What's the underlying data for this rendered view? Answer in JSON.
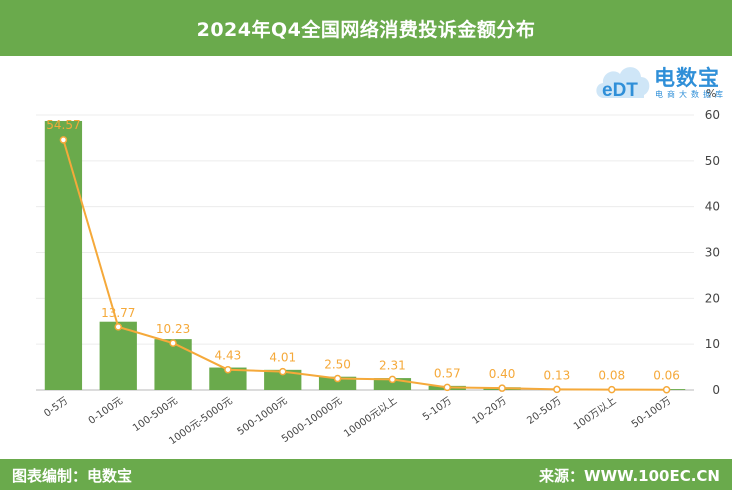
{
  "header": {
    "title": "2024年Q4全国网络消费投诉金额分布"
  },
  "logo": {
    "name": "电数宝",
    "subtitle": "电商大数据库",
    "cloud_text": "eDT"
  },
  "footer": {
    "left": "图表编制：电数宝",
    "right": "来源：WWW.100EC.CN"
  },
  "colors": {
    "bar": "#6aaa4c",
    "line": "#f5a93a",
    "header": "#6aaa4c",
    "logo": "#2f8fd8"
  },
  "chart_data": {
    "type": "bar",
    "categories": [
      "0-5万",
      "0-100元",
      "100-500元",
      "1000元-5000元",
      "500-1000元",
      "5000-10000元",
      "10000元以上",
      "5-10万",
      "10-20万",
      "20-50万",
      "100万以上",
      "50-100万"
    ],
    "series": [
      {
        "type": "bar",
        "values": [
          58.7,
          14.9,
          11.1,
          4.9,
          4.4,
          2.9,
          2.6,
          0.9,
          0.6,
          0.3,
          0.2,
          0.2
        ]
      },
      {
        "type": "line",
        "values": [
          54.57,
          13.77,
          10.23,
          4.43,
          4.01,
          2.5,
          2.31,
          0.57,
          0.4,
          0.13,
          0.08,
          0.06
        ],
        "labels": [
          "54.57",
          "13.77",
          "10.23",
          "4.43",
          "4.01",
          "2.50",
          "2.31",
          "0.57",
          "0.40",
          "0.13",
          "0.08",
          "0.06"
        ]
      }
    ],
    "yaxis": {
      "side": "right",
      "unit": "%",
      "ticks": [
        0,
        10,
        20,
        30,
        40,
        50,
        60
      ],
      "ylim": [
        0,
        60
      ]
    },
    "grid": true,
    "legend": "none"
  }
}
